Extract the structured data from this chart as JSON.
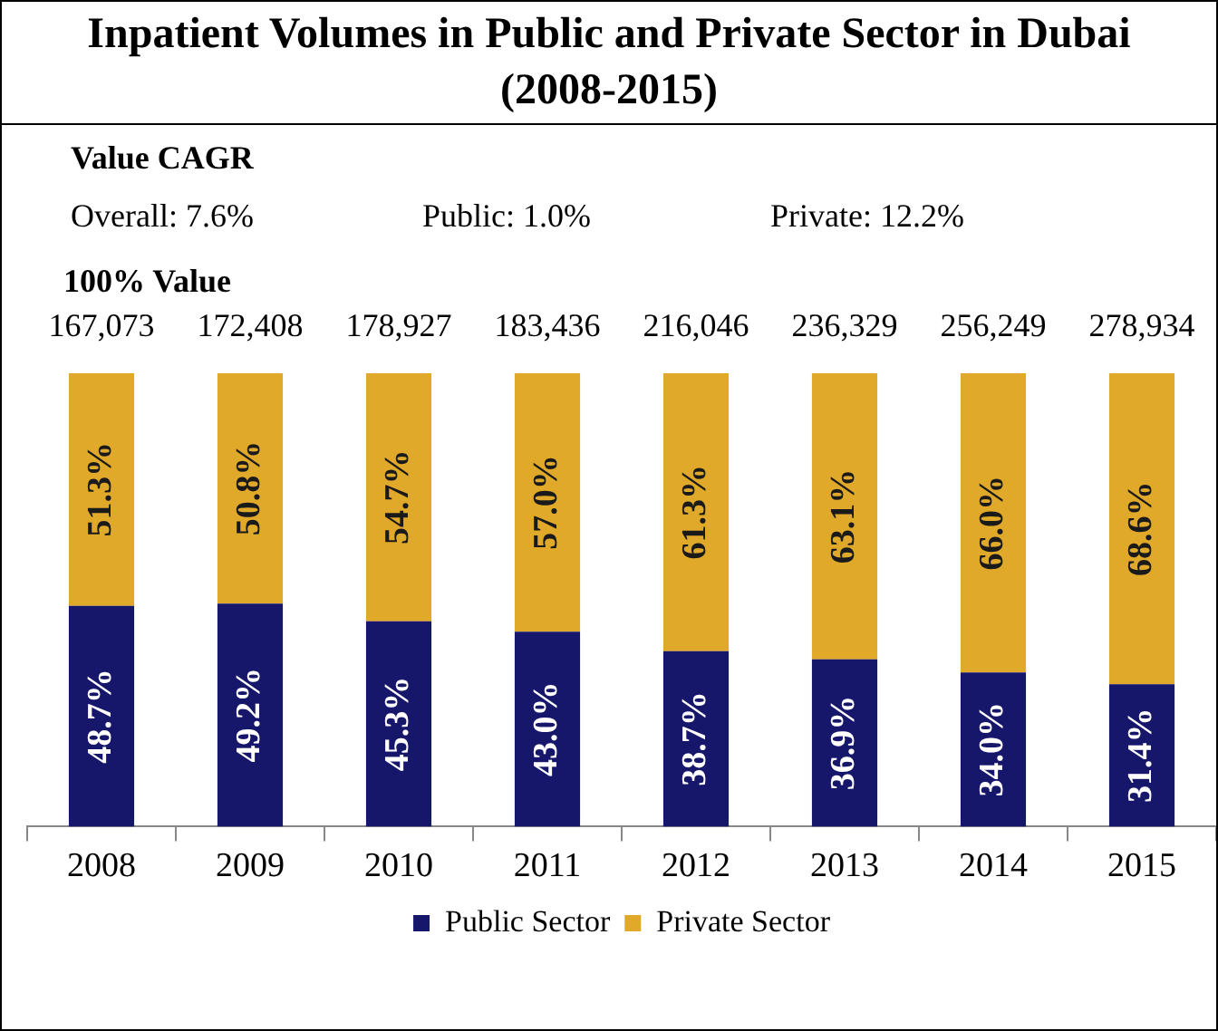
{
  "chart_data": {
    "type": "bar",
    "title": "Inpatient Volumes in Public and Private Sector in Dubai (2008-2015)",
    "annotations": [
      "Value CAGR",
      "Overall: 7.6%",
      "Public: 1.0%",
      "Private: 12.2%",
      "100% Value",
      {
        "text": "167,073",
        "x": "2008",
        "y": 100
      },
      {
        "text": "172,408",
        "x": "2009",
        "y": 100
      },
      {
        "text": "178,927",
        "x": "2010",
        "y": 100
      },
      {
        "text": "183,436",
        "x": "2011",
        "y": 100
      },
      {
        "text": "216,046",
        "x": "2012",
        "y": 100
      },
      {
        "text": "236,329",
        "x": "2013",
        "y": 100
      },
      {
        "text": "256,249",
        "x": "2014",
        "y": 100
      },
      {
        "text": "278,934",
        "x": "2015",
        "y": 100
      }
    ],
    "categories": [
      "2008",
      "2009",
      "2010",
      "2011",
      "2012",
      "2013",
      "2014",
      "2015"
    ],
    "stacked": true,
    "ylim": [
      0,
      100
    ],
    "series": [
      {
        "name": "Public Sector",
        "color": "#16166b",
        "values": [
          48.7,
          49.2,
          45.3,
          43.0,
          38.7,
          36.9,
          34.0,
          31.4
        ],
        "value_labels": [
          "48.7%",
          "49.2%",
          "45.3%",
          "43.0%",
          "38.7%",
          "36.9%",
          "34.0%",
          "31.4%"
        ]
      },
      {
        "name": "Private Sector",
        "color": "#e1a92a",
        "values": [
          51.3,
          50.8,
          54.7,
          57.0,
          61.3,
          63.1,
          66.0,
          68.6
        ],
        "value_labels": [
          "51.3%",
          "50.8%",
          "54.7%",
          "57.0%",
          "61.3%",
          "63.1%",
          "66.0%",
          "68.6%"
        ]
      }
    ],
    "legend": "bottom",
    "grid": false,
    "tick_labels": "x"
  }
}
